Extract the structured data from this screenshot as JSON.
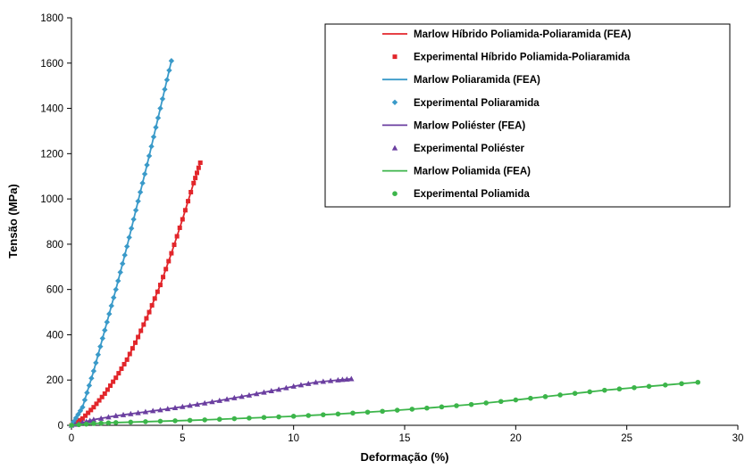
{
  "chart_data": {
    "type": "scatter",
    "xlabel": "Deformação (%)",
    "ylabel": "Tensão (MPa)",
    "xlim": [
      0,
      30
    ],
    "ylim": [
      0,
      1800
    ],
    "xticks": [
      0,
      5,
      10,
      15,
      20,
      25,
      30
    ],
    "yticks": [
      0,
      200,
      400,
      600,
      800,
      1000,
      1200,
      1400,
      1600,
      1800
    ],
    "grid": false,
    "legend_position": "top-right",
    "series": [
      {
        "name": "Marlow Híbrido Poliamida-Poliaramida (FEA)",
        "kind": "line",
        "color": "#e2262b",
        "marker": "none",
        "x": [
          0,
          0.5,
          1.0,
          1.5,
          2.0,
          2.5,
          3.0,
          3.5,
          4.0,
          4.5,
          5.0,
          5.5,
          5.8
        ],
        "y": [
          0,
          30,
          80,
          140,
          210,
          290,
          390,
          500,
          620,
          760,
          910,
          1070,
          1160
        ]
      },
      {
        "name": "Experimental Híbrido Poliamida-Poliaramida",
        "kind": "points",
        "color": "#e2262b",
        "marker": "square",
        "x": [
          0,
          0.5,
          1.0,
          1.5,
          2.0,
          2.5,
          3.0,
          3.5,
          4.0,
          4.5,
          5.0,
          5.5,
          5.8
        ],
        "y": [
          0,
          30,
          80,
          140,
          210,
          290,
          390,
          500,
          620,
          760,
          910,
          1070,
          1160
        ]
      },
      {
        "name": "Marlow Poliaramida (FEA)",
        "kind": "line",
        "color": "#3a9ac9",
        "marker": "none",
        "x": [
          0,
          0.5,
          1.0,
          1.5,
          2.0,
          2.5,
          3.0,
          3.5,
          4.0,
          4.5
        ],
        "y": [
          0,
          80,
          240,
          420,
          600,
          790,
          990,
          1190,
          1400,
          1610
        ]
      },
      {
        "name": "Experimental Poliaramida",
        "kind": "points",
        "color": "#3a9ac9",
        "marker": "diamond",
        "x": [
          0,
          0.5,
          1.0,
          1.5,
          2.0,
          2.5,
          3.0,
          3.5,
          4.0,
          4.5
        ],
        "y": [
          0,
          80,
          240,
          420,
          600,
          790,
          990,
          1190,
          1400,
          1610
        ]
      },
      {
        "name": "Marlow Poliéster (FEA)",
        "kind": "line",
        "color": "#6b3fa0",
        "marker": "none",
        "x": [
          0,
          0.5,
          1,
          2,
          3,
          4,
          5,
          6,
          7,
          8,
          9,
          10,
          11,
          12,
          12.6
        ],
        "y": [
          0,
          12,
          25,
          42,
          55,
          68,
          82,
          98,
          115,
          133,
          152,
          172,
          190,
          200,
          205
        ]
      },
      {
        "name": "Experimental Poliéster",
        "kind": "points",
        "color": "#6b3fa0",
        "marker": "triangle",
        "x": [
          0,
          0.5,
          1,
          2,
          3,
          4,
          5,
          6,
          7,
          8,
          9,
          10,
          11,
          12,
          12.6
        ],
        "y": [
          0,
          12,
          25,
          42,
          55,
          68,
          82,
          98,
          115,
          133,
          152,
          172,
          190,
          200,
          205
        ]
      },
      {
        "name": "Marlow Poliamida (FEA)",
        "kind": "line",
        "color": "#3cb54a",
        "marker": "none",
        "x": [
          0,
          1,
          2,
          4,
          6,
          8,
          10,
          12,
          14,
          16,
          18,
          20,
          22,
          24,
          26,
          28.2
        ],
        "y": [
          0,
          8,
          12,
          18,
          24,
          32,
          40,
          50,
          62,
          76,
          92,
          112,
          134,
          155,
          172,
          190
        ]
      },
      {
        "name": "Experimental Poliamida",
        "kind": "points",
        "color": "#3cb54a",
        "marker": "circle",
        "x": [
          0,
          1,
          2,
          4,
          6,
          8,
          10,
          12,
          14,
          16,
          18,
          20,
          22,
          24,
          26,
          28.2
        ],
        "y": [
          0,
          8,
          12,
          18,
          24,
          32,
          40,
          50,
          62,
          76,
          92,
          112,
          134,
          155,
          172,
          190
        ]
      }
    ]
  }
}
